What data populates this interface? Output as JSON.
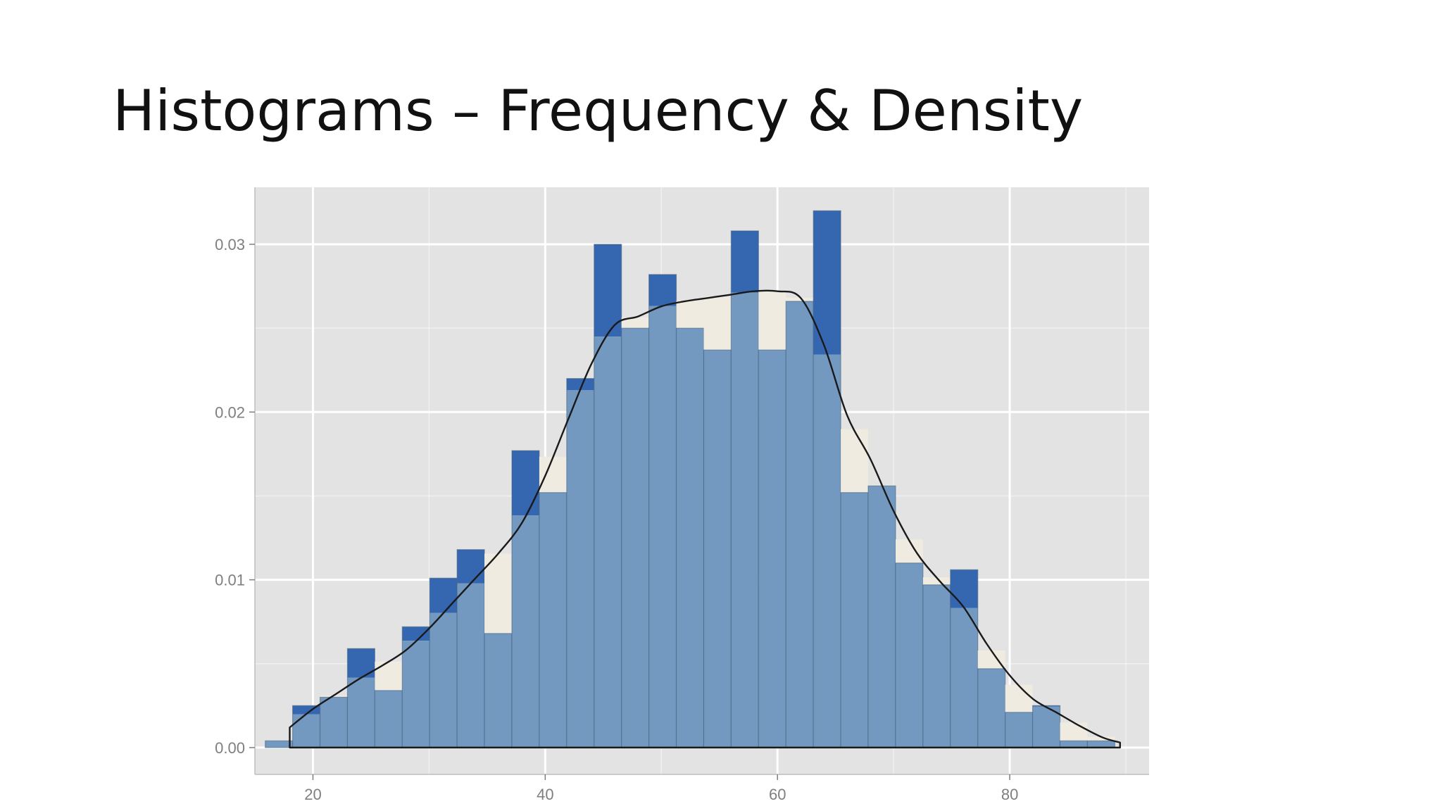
{
  "slide": {
    "title": "Histograms – Frequency & Density"
  },
  "colors": {
    "panel_background": "#e3e3e3",
    "grid": "#ffffff",
    "frequency_bar": "#3567b0",
    "density_bar": "#7399c0",
    "density_area": "#efebe0",
    "bar_outline": "#46627e",
    "density_line": "#1a1a1a"
  },
  "chart_data": {
    "type": "bar",
    "title": "",
    "xlabel": "",
    "ylabel": "",
    "xlim": [
      15,
      92
    ],
    "ylim": [
      -0.0016,
      0.0334
    ],
    "x_ticks": [
      20,
      40,
      60,
      80
    ],
    "x_tick_labels": [
      "20",
      "40",
      "60",
      "80"
    ],
    "y_ticks": [
      0,
      0.01,
      0.02,
      0.03
    ],
    "y_tick_labels": [
      "0.00",
      "0.01",
      "0.02",
      "0.03"
    ],
    "grid": true,
    "legend": "none",
    "bin_width": 2.36,
    "bin_start": 15.89,
    "series": [
      {
        "kind": "histogram",
        "values": [
          0.0004,
          0.0025,
          0.003,
          0.0059,
          0.0034,
          0.0072,
          0.0101,
          0.0118,
          0.0068,
          0.0177,
          0.0152,
          0.022,
          0.03,
          0.025,
          0.0282,
          0.025,
          0.0237,
          0.0308,
          0.0237,
          0.0266,
          0.032,
          0.0152,
          0.0156,
          0.011,
          0.0097,
          0.0106,
          0.0047,
          0.0021,
          0.0025,
          0.0004,
          0.0004
        ]
      },
      {
        "kind": "density",
        "x": [
          18,
          20,
          22,
          24,
          26,
          28,
          30,
          32,
          34,
          36,
          38,
          40,
          42,
          44,
          46,
          48,
          50,
          52,
          54,
          56,
          58,
          60,
          62,
          64,
          66,
          68,
          70,
          72,
          74,
          76,
          78,
          80,
          82,
          84,
          86,
          88,
          89.5
        ],
        "y": [
          0.0012,
          0.0023,
          0.0032,
          0.0041,
          0.0049,
          0.0058,
          0.0071,
          0.0086,
          0.0101,
          0.0116,
          0.0134,
          0.0162,
          0.0196,
          0.0229,
          0.0252,
          0.0257,
          0.0263,
          0.0266,
          0.0268,
          0.027,
          0.0272,
          0.0272,
          0.0268,
          0.024,
          0.0198,
          0.0172,
          0.0141,
          0.0116,
          0.0099,
          0.0084,
          0.0062,
          0.0043,
          0.0029,
          0.0021,
          0.0013,
          0.0006,
          0.0003
        ]
      }
    ]
  }
}
